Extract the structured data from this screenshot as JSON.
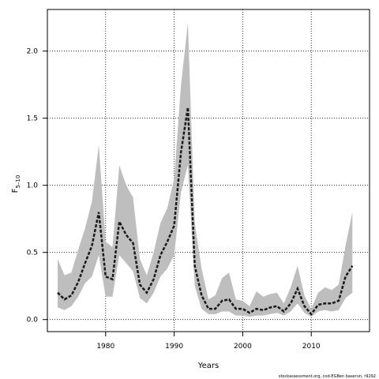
{
  "chart_data": {
    "type": "line",
    "title": "",
    "xlabel": "Years",
    "ylabel": "F",
    "ylabel_sub": "5–10",
    "xlim": [
      1971.5,
      2018.5
    ],
    "ylim": [
      -0.09,
      2.31
    ],
    "x_ticks": [
      1980,
      1990,
      2000,
      2010
    ],
    "y_ticks": [
      0.0,
      0.5,
      1.0,
      1.5,
      2.0
    ],
    "y_tick_labels": [
      "0.0",
      "0.5",
      "1.0",
      "1.5",
      "2.0"
    ],
    "grid": true,
    "colors": {
      "band": "#bebebe",
      "line": "#1a1a1a",
      "grid": "#000000"
    },
    "series": [
      {
        "x": [
          1973,
          1974,
          1975,
          1976,
          1977,
          1978,
          1979,
          1980,
          1981,
          1982,
          1983,
          1984,
          1985,
          1986,
          1987,
          1988,
          1989,
          1990,
          1991,
          1992,
          1993,
          1994,
          1995,
          1996,
          1997,
          1998,
          1999,
          2000,
          2001,
          2002,
          2003,
          2004,
          2005,
          2006,
          2007,
          2008,
          2009,
          2010,
          2011,
          2012,
          2013,
          2014,
          2015,
          2016
        ],
        "values": [
          0.2,
          0.15,
          0.18,
          0.28,
          0.42,
          0.55,
          0.8,
          0.32,
          0.3,
          0.73,
          0.63,
          0.57,
          0.26,
          0.2,
          0.3,
          0.48,
          0.58,
          0.7,
          1.25,
          1.58,
          0.4,
          0.18,
          0.08,
          0.08,
          0.14,
          0.15,
          0.08,
          0.08,
          0.05,
          0.08,
          0.07,
          0.09,
          0.1,
          0.06,
          0.12,
          0.23,
          0.1,
          0.04,
          0.11,
          0.12,
          0.12,
          0.14,
          0.32,
          0.4
        ],
        "lower": [
          0.09,
          0.07,
          0.1,
          0.17,
          0.27,
          0.32,
          0.48,
          0.17,
          0.17,
          0.48,
          0.42,
          0.36,
          0.16,
          0.12,
          0.2,
          0.32,
          0.38,
          0.48,
          0.95,
          1.15,
          0.25,
          0.08,
          0.04,
          0.04,
          0.06,
          0.06,
          0.03,
          0.03,
          0.02,
          0.03,
          0.03,
          0.04,
          0.05,
          0.03,
          0.06,
          0.12,
          0.05,
          0.02,
          0.06,
          0.07,
          0.06,
          0.07,
          0.16,
          0.2
        ],
        "upper": [
          0.45,
          0.33,
          0.35,
          0.52,
          0.68,
          0.88,
          1.3,
          0.58,
          0.54,
          1.15,
          1.0,
          0.91,
          0.45,
          0.33,
          0.5,
          0.72,
          0.83,
          1.05,
          1.75,
          2.21,
          0.72,
          0.38,
          0.15,
          0.18,
          0.31,
          0.35,
          0.15,
          0.14,
          0.1,
          0.21,
          0.17,
          0.19,
          0.2,
          0.12,
          0.24,
          0.4,
          0.18,
          0.08,
          0.2,
          0.24,
          0.22,
          0.26,
          0.55,
          0.8
        ]
      }
    ]
  },
  "footer": {
    "credit": "stockassessment.org, cod-EGBen baserun, r9292"
  }
}
